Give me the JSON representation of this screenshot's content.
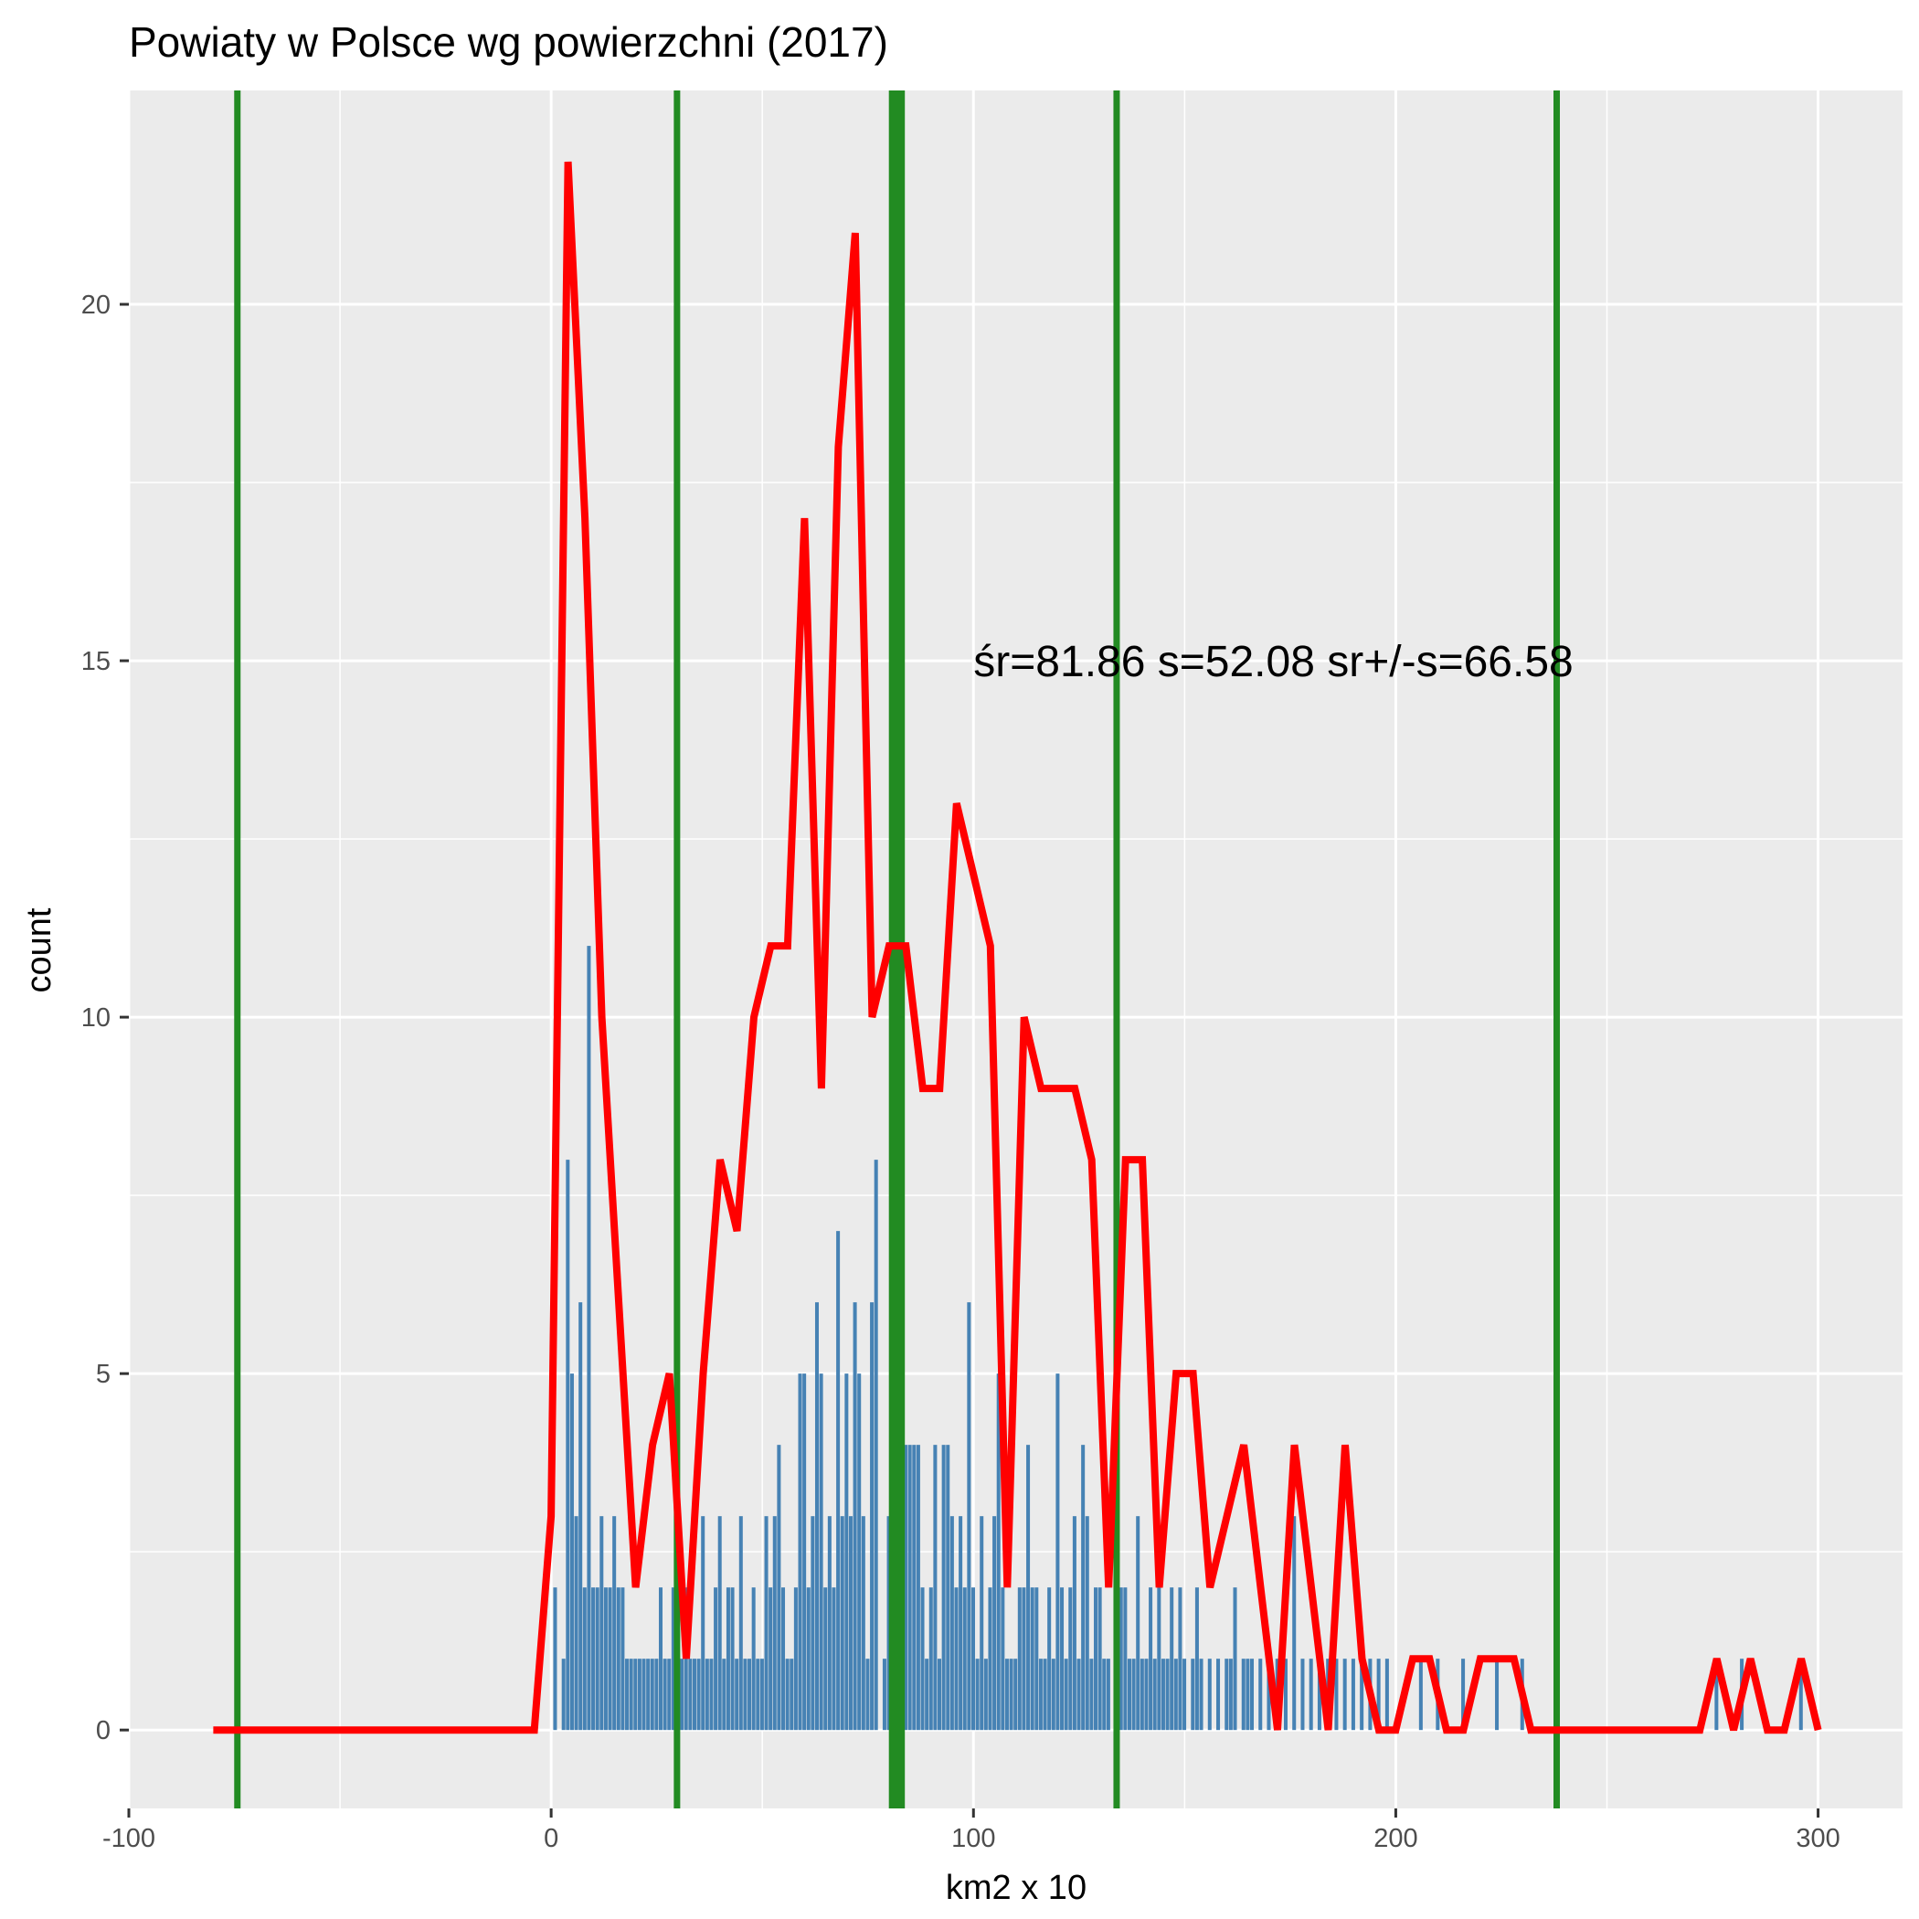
{
  "chart_data": {
    "type": "bar",
    "title": "Powiaty w Polsce wg powierzchni (2017)",
    "xlabel": "km2 x 10",
    "ylabel": "count",
    "xlim": [
      -100,
      320
    ],
    "ylim": [
      -1.1,
      23
    ],
    "x_ticks": [
      -100,
      0,
      100,
      200,
      300
    ],
    "x_tick_labels": [
      "-100",
      "0",
      "100",
      "200",
      "300"
    ],
    "y_ticks": [
      0,
      5,
      10,
      15,
      20
    ],
    "y_tick_labels": [
      "0",
      "5",
      "10",
      "15",
      "20"
    ],
    "grid": true,
    "legend": "none",
    "colors": {
      "panel": "#ebebeb",
      "grid": "#ffffff",
      "bars": "#4682b4",
      "line": "#ff0000",
      "vlines": "#228b22",
      "tick": "#333333"
    },
    "annotation": {
      "text": "śr=81.86 s=52.08 sr+/-s=66.58",
      "x": 100,
      "y": 15
    },
    "bars": {
      "width": 1,
      "x": [
        1,
        3,
        4,
        5,
        6,
        7,
        8,
        9,
        10,
        11,
        12,
        13,
        14,
        15,
        16,
        17,
        18,
        19,
        20,
        21,
        22,
        23,
        24,
        25,
        26,
        27,
        28,
        29,
        30,
        31,
        32,
        33,
        34,
        35,
        36,
        37,
        38,
        39,
        40,
        41,
        42,
        43,
        44,
        45,
        46,
        47,
        48,
        49,
        50,
        51,
        52,
        53,
        54,
        55,
        56,
        57,
        58,
        59,
        60,
        61,
        62,
        63,
        64,
        65,
        66,
        67,
        68,
        69,
        70,
        71,
        72,
        73,
        74,
        75,
        76,
        77,
        79,
        80,
        81,
        82,
        83,
        84,
        85,
        86,
        87,
        88,
        89,
        90,
        91,
        92,
        93,
        94,
        95,
        96,
        97,
        98,
        99,
        100,
        101,
        102,
        103,
        104,
        105,
        106,
        107,
        108,
        109,
        110,
        111,
        112,
        113,
        114,
        115,
        116,
        117,
        118,
        119,
        120,
        121,
        122,
        123,
        124,
        125,
        126,
        127,
        128,
        129,
        130,
        131,
        132,
        134,
        135,
        136,
        137,
        138,
        139,
        140,
        141,
        142,
        143,
        144,
        145,
        146,
        147,
        148,
        149,
        150,
        152,
        153,
        154,
        156,
        158,
        160,
        161,
        162,
        164,
        165,
        166,
        168,
        170,
        172,
        174,
        176,
        178,
        180,
        182,
        184,
        186,
        188,
        190,
        192,
        194,
        196,
        198,
        206,
        210,
        216,
        224,
        230,
        276,
        282,
        296
      ],
      "values": [
        2,
        1,
        8,
        5,
        3,
        6,
        2,
        11,
        2,
        2,
        3,
        2,
        2,
        3,
        2,
        2,
        1,
        1,
        1,
        1,
        1,
        1,
        1,
        1,
        2,
        1,
        1,
        2,
        1,
        1,
        2,
        1,
        1,
        1,
        3,
        1,
        1,
        2,
        3,
        1,
        2,
        2,
        1,
        3,
        1,
        1,
        2,
        1,
        1,
        3,
        2,
        3,
        4,
        2,
        1,
        1,
        2,
        5,
        5,
        2,
        3,
        6,
        5,
        2,
        3,
        2,
        7,
        3,
        5,
        3,
        6,
        5,
        3,
        1,
        6,
        8,
        1,
        3,
        1,
        1,
        1,
        4,
        4,
        4,
        4,
        2,
        1,
        2,
        4,
        1,
        4,
        4,
        3,
        2,
        3,
        2,
        6,
        2,
        1,
        3,
        1,
        2,
        3,
        5,
        2,
        1,
        1,
        1,
        2,
        2,
        4,
        2,
        2,
        1,
        1,
        2,
        1,
        5,
        2,
        1,
        2,
        3,
        1,
        4,
        3,
        1,
        2,
        2,
        1,
        1,
        1,
        2,
        2,
        1,
        1,
        3,
        1,
        1,
        2,
        1,
        2,
        1,
        1,
        2,
        1,
        2,
        1,
        1,
        2,
        1,
        1,
        1,
        1,
        1,
        2,
        1,
        1,
        1,
        1,
        1,
        1,
        1,
        3,
        1,
        1,
        1,
        1,
        1,
        1,
        1,
        1,
        1,
        1,
        1,
        1,
        1,
        1,
        1,
        1,
        1,
        1,
        1
      ]
    },
    "line": {
      "x": [
        -80,
        -4,
        0,
        4,
        8,
        12,
        16,
        20,
        24,
        28,
        32,
        36,
        40,
        44,
        48,
        52,
        56,
        60,
        64,
        68,
        72,
        76,
        80,
        84,
        88,
        92,
        96,
        100,
        104,
        108,
        112,
        116,
        120,
        124,
        128,
        132,
        136,
        140,
        144,
        148,
        152,
        156,
        160,
        164,
        168,
        172,
        176,
        180,
        184,
        188,
        192,
        196,
        200,
        204,
        208,
        212,
        216,
        220,
        224,
        228,
        232,
        272,
        276,
        280,
        284,
        288,
        292,
        296,
        300
      ],
      "values": [
        0,
        0,
        3,
        22,
        17,
        10,
        6,
        2,
        4,
        5,
        1,
        5,
        8,
        7,
        10,
        11,
        11,
        17,
        9,
        18,
        21,
        10,
        11,
        11,
        9,
        9,
        13,
        12,
        11,
        2,
        10,
        9,
        9,
        9,
        8,
        2,
        8,
        8,
        2,
        5,
        5,
        2,
        3,
        4,
        2,
        0,
        4,
        2,
        0,
        4,
        1,
        0,
        0,
        1,
        1,
        0,
        0,
        1,
        1,
        1,
        0,
        0,
        1,
        0,
        1,
        0,
        0,
        1,
        0
      ]
    },
    "vlines": [
      {
        "x": -74.3,
        "weight": 1
      },
      {
        "x": 29.8,
        "weight": 1
      },
      {
        "x": 81.86,
        "weight": 2.5
      },
      {
        "x": 133.9,
        "weight": 1
      },
      {
        "x": 238.1,
        "weight": 1
      }
    ]
  }
}
